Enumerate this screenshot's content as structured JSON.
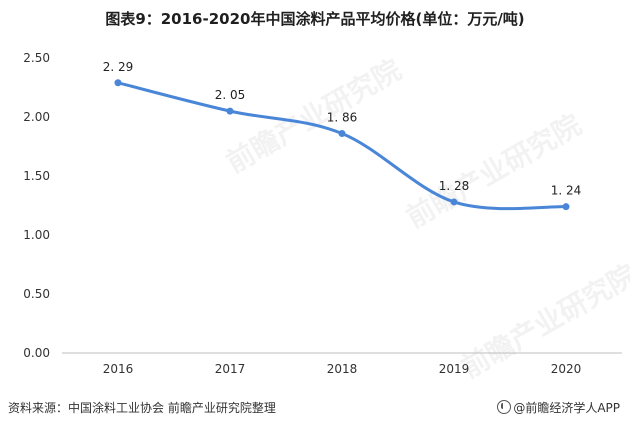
{
  "chart_data": {
    "type": "line",
    "title": "图表9：2016-2020年中国涂料产品平均价格(单位：万元/吨)",
    "categories": [
      "2016",
      "2017",
      "2018",
      "2019",
      "2020"
    ],
    "values": [
      2.29,
      2.05,
      1.86,
      1.28,
      1.24
    ],
    "data_labels": [
      "2. 29",
      "2. 05",
      "1. 86",
      "1. 28",
      "1. 24"
    ],
    "y_ticks": [
      "0.00",
      "0.50",
      "1.00",
      "1.50",
      "2.00",
      "2.50"
    ],
    "ylim": [
      0,
      2.5
    ],
    "grid": false,
    "legend": "none",
    "line_color": "#4a86d8"
  },
  "footer": {
    "source": "资料来源：中国涂料工业协会 前瞻产业研究院整理",
    "brand": "@前瞻经济学人APP"
  },
  "watermark": {
    "text": "前瞻产业研究院"
  }
}
